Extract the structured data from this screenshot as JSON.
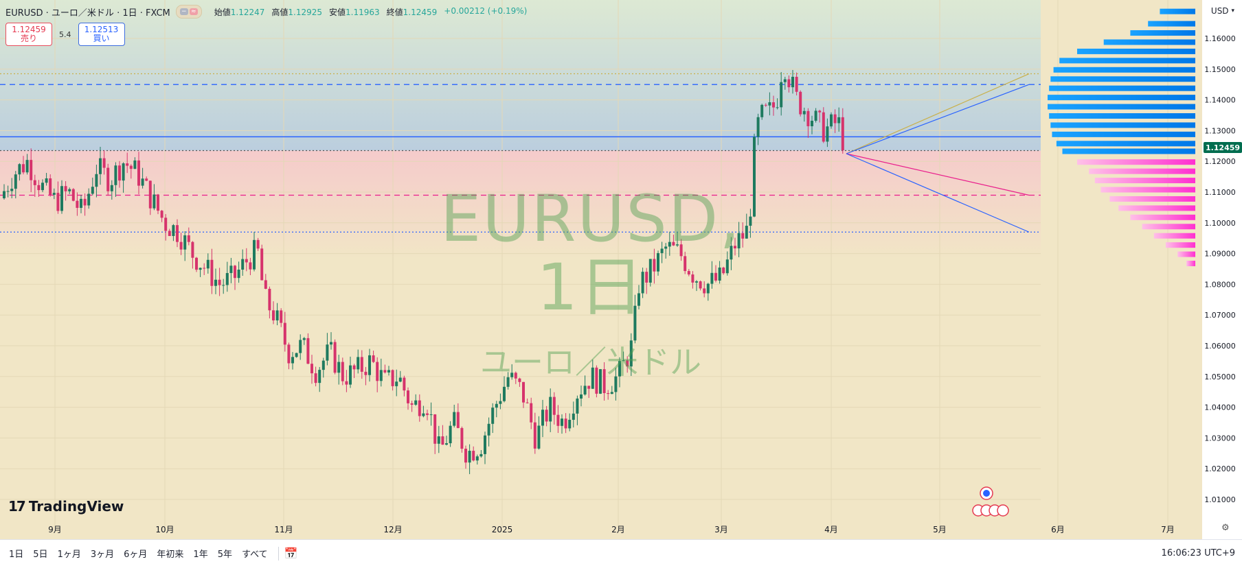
{
  "header": {
    "symbol_line": "EURUSD · ユーロ／米ドル · 1日 · FXCM",
    "toggle_icon": "compare-toggle-icon",
    "ohlc": [
      {
        "label": "始値",
        "value": "1.12247"
      },
      {
        "label": "高値",
        "value": "1.12925"
      },
      {
        "label": "安値",
        "value": "1.11963"
      },
      {
        "label": "終値",
        "value": "1.12459"
      }
    ],
    "change": "+0.00212 (+0.19%)"
  },
  "trade": {
    "sell_price": "1.12459",
    "sell_label": "売り",
    "spread": "5.4",
    "buy_price": "1.12513",
    "buy_label": "買い"
  },
  "watermark": {
    "title": "EURUSD, 1日",
    "subtitle": "ユーロ／米ドル"
  },
  "logo": {
    "text": "TradingView"
  },
  "currency": {
    "label": "USD",
    "icon": "chevron-down-icon"
  },
  "last_price": "1.12459",
  "bottom": {
    "ranges": [
      "1日",
      "5日",
      "1ヶ月",
      "3ヶ月",
      "6ヶ月",
      "年初来",
      "1年",
      "5年",
      "すべて"
    ],
    "calendar_icon": "calendar-goto-icon",
    "time": "16:06:23 UTC+9",
    "gear_icon": "settings-gear-icon"
  },
  "colors": {
    "up": "#1e7a5f",
    "down": "#d6336c",
    "blue_level": "#2962ff",
    "pink_level": "#e91e8c",
    "buy_profile": "#0a96f2",
    "sell_profile": "#ff33cc"
  },
  "chart_data": {
    "type": "candlestick",
    "y_ticks": [
      "1.16000",
      "1.15000",
      "1.14000",
      "1.13000",
      "1.12000",
      "1.11000",
      "1.10000",
      "1.09000",
      "1.08000",
      "1.07000",
      "1.06000",
      "1.05000",
      "1.04000",
      "1.03000",
      "1.02000",
      "1.01000"
    ],
    "ylim": [
      1.0,
      1.17
    ],
    "x_labels": [
      "9月",
      "10月",
      "11月",
      "12月",
      "2025",
      "2月",
      "3月",
      "4月",
      "5月",
      "6月",
      "7月"
    ],
    "levels": [
      {
        "price": 1.1485,
        "style": "dotted",
        "color": "#c9b04a"
      },
      {
        "price": 1.145,
        "style": "dashed",
        "color": "#2962ff"
      },
      {
        "price": 1.128,
        "style": "solid",
        "color": "#2962ff"
      },
      {
        "price": 1.1235,
        "style": "dotted",
        "color": "#555555"
      },
      {
        "price": 1.109,
        "style": "dashed",
        "color": "#e91e8c"
      },
      {
        "price": 1.097,
        "style": "dotted",
        "color": "#2962ff"
      }
    ],
    "close_path": [
      [
        0,
        1.108
      ],
      [
        20,
        1.116
      ],
      [
        40,
        1.12
      ],
      [
        60,
        1.112
      ],
      [
        80,
        1.107
      ],
      [
        100,
        1.11
      ],
      [
        120,
        1.103
      ],
      [
        140,
        1.118
      ],
      [
        160,
        1.114
      ],
      [
        180,
        1.12
      ],
      [
        200,
        1.116
      ],
      [
        220,
        1.108
      ],
      [
        240,
        1.1
      ],
      [
        260,
        1.097
      ],
      [
        280,
        1.09
      ],
      [
        300,
        1.085
      ],
      [
        320,
        1.08
      ],
      [
        340,
        1.082
      ],
      [
        360,
        1.088
      ],
      [
        375,
        1.091
      ],
      [
        385,
        1.075
      ],
      [
        400,
        1.07
      ],
      [
        420,
        1.058
      ],
      [
        440,
        1.06
      ],
      [
        460,
        1.052
      ],
      [
        480,
        1.058
      ],
      [
        500,
        1.05
      ],
      [
        520,
        1.052
      ],
      [
        540,
        1.055
      ],
      [
        560,
        1.048
      ],
      [
        580,
        1.05
      ],
      [
        600,
        1.04
      ],
      [
        620,
        1.043
      ],
      [
        640,
        1.025
      ],
      [
        660,
        1.035
      ],
      [
        680,
        1.025
      ],
      [
        700,
        1.028
      ],
      [
        720,
        1.04
      ],
      [
        740,
        1.05
      ],
      [
        760,
        1.045
      ],
      [
        780,
        1.03
      ],
      [
        800,
        1.04
      ],
      [
        820,
        1.035
      ],
      [
        840,
        1.045
      ],
      [
        860,
        1.05
      ],
      [
        880,
        1.047
      ],
      [
        900,
        1.05
      ],
      [
        920,
        1.06
      ],
      [
        930,
        1.08
      ],
      [
        950,
        1.085
      ],
      [
        970,
        1.092
      ],
      [
        990,
        1.09
      ],
      [
        1010,
        1.083
      ],
      [
        1030,
        1.08
      ],
      [
        1050,
        1.082
      ],
      [
        1070,
        1.093
      ],
      [
        1090,
        1.098
      ],
      [
        1100,
        1.13
      ],
      [
        1110,
        1.135
      ],
      [
        1120,
        1.136
      ],
      [
        1130,
        1.139
      ],
      [
        1140,
        1.153
      ],
      [
        1160,
        1.14
      ],
      [
        1180,
        1.135
      ],
      [
        1200,
        1.13
      ],
      [
        1220,
        1.133
      ],
      [
        1230,
        1.1245
      ]
    ],
    "volume_profile": {
      "buy": [
        [
          1.169,
          1.2
        ],
        [
          1.165,
          1.6
        ],
        [
          1.162,
          2.2
        ],
        [
          1.159,
          3.1
        ],
        [
          1.156,
          4.0
        ],
        [
          1.153,
          4.6
        ],
        [
          1.15,
          4.8
        ],
        [
          1.147,
          4.9
        ],
        [
          1.144,
          4.95
        ],
        [
          1.141,
          5.0
        ],
        [
          1.138,
          5.0
        ],
        [
          1.135,
          4.95
        ],
        [
          1.132,
          4.9
        ],
        [
          1.129,
          4.85
        ],
        [
          1.126,
          4.7
        ],
        [
          1.1235,
          4.5
        ]
      ],
      "sell": [
        [
          1.12,
          4.0
        ],
        [
          1.117,
          3.6
        ],
        [
          1.114,
          3.4
        ],
        [
          1.111,
          3.2
        ],
        [
          1.108,
          2.9
        ],
        [
          1.105,
          2.6
        ],
        [
          1.102,
          2.2
        ],
        [
          1.099,
          1.8
        ],
        [
          1.096,
          1.4
        ],
        [
          1.093,
          1.0
        ],
        [
          1.09,
          0.6
        ],
        [
          1.087,
          0.3
        ]
      ]
    }
  }
}
